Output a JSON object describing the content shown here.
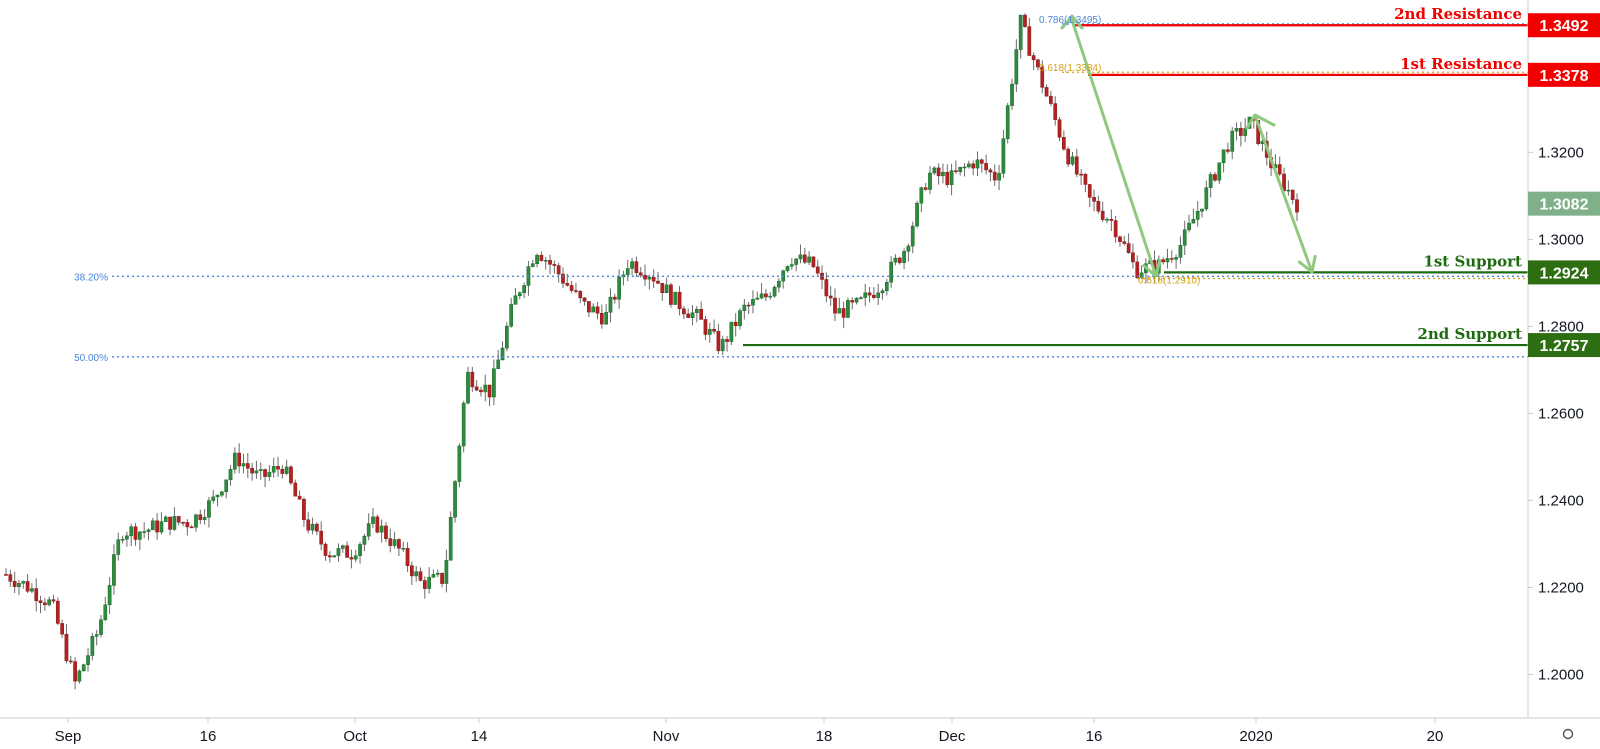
{
  "chart_data": {
    "type": "candlestick",
    "y_ticks": [
      "1.2000",
      "1.2200",
      "1.2400",
      "1.2600",
      "1.2800",
      "1.3000",
      "1.3200"
    ],
    "ylim": [
      1.19,
      1.355
    ],
    "x_ticks": [
      "Sep",
      "16",
      "Oct",
      "14",
      "Nov",
      "18",
      "Dec",
      "16",
      "2020",
      "20"
    ],
    "current_price": {
      "label": "1.3082",
      "value": 1.3082
    },
    "levels": [
      {
        "name": "2nd Resistance",
        "label": "1.3492",
        "value": 1.3492,
        "color": "#f20000"
      },
      {
        "name": "1st Resistance",
        "label": "1.3378",
        "value": 1.3378,
        "color": "#f20000"
      },
      {
        "name": "1st Support",
        "label": "1.2924",
        "value": 1.2924,
        "color": "#1e6b0f"
      },
      {
        "name": "2nd Support",
        "label": "1.2757",
        "value": 1.2757,
        "color": "#1e6b0f"
      }
    ],
    "fib_levels": [
      {
        "label": "38.20%",
        "value": 1.2915,
        "color": "#4a86d9"
      },
      {
        "label": "50.00%",
        "value": 1.273,
        "color": "#4a86d9"
      }
    ],
    "fib_small": [
      {
        "label": "0.786(1.3495)",
        "value": 1.3495,
        "color": "#4a86d9"
      },
      {
        "label": "0.618(1.3384)",
        "value": 1.3384,
        "color": "#d4a017"
      },
      {
        "label": "0.618(1.2910)",
        "value": 1.291,
        "color": "#d4a017"
      }
    ],
    "price_path": [
      [
        1.228,
        1.223
      ],
      [
        1.224,
        1.22
      ],
      [
        1.219,
        1.216
      ],
      [
        1.208,
        1.198
      ],
      [
        1.208,
        1.21
      ],
      [
        1.23,
        1.233
      ],
      [
        1.236,
        1.233
      ],
      [
        1.232,
        1.235
      ],
      [
        1.238,
        1.235
      ],
      [
        1.25,
        1.24
      ],
      [
        1.245,
        1.25
      ],
      [
        1.256,
        1.245
      ],
      [
        1.242,
        1.248
      ],
      [
        1.238,
        1.235
      ],
      [
        1.23,
        1.228
      ],
      [
        1.227,
        1.228
      ],
      [
        1.23,
        1.235
      ],
      [
        1.233,
        1.229
      ],
      [
        1.225,
        1.221
      ],
      [
        1.22,
        1.222
      ],
      [
        1.25,
        1.269
      ],
      [
        1.26,
        1.265
      ],
      [
        1.276,
        1.285
      ],
      [
        1.293,
        1.298
      ],
      [
        1.288,
        1.292
      ],
      [
        1.286,
        1.285
      ],
      [
        1.284,
        1.282
      ],
      [
        1.288,
        1.295
      ],
      [
        1.296,
        1.292
      ],
      [
        1.289,
        1.286
      ],
      [
        1.285,
        1.282
      ],
      [
        1.278,
        1.275
      ],
      [
        1.282,
        1.284
      ],
      [
        1.283,
        1.287
      ],
      [
        1.295,
        1.296
      ],
      [
        1.292,
        1.294
      ],
      [
        1.288,
        1.283
      ],
      [
        1.286,
        1.285
      ],
      [
        1.288,
        1.29
      ],
      [
        1.294,
        1.298
      ],
      [
        1.302,
        1.315
      ],
      [
        1.316,
        1.314
      ],
      [
        1.316,
        1.318
      ],
      [
        1.315,
        1.314
      ],
      [
        1.32,
        1.35
      ],
      [
        1.338,
        1.335
      ],
      [
        1.33,
        1.32
      ],
      [
        1.311,
        1.309
      ],
      [
        1.305,
        1.304
      ],
      [
        1.302,
        1.293
      ],
      [
        1.295,
        1.294
      ],
      [
        1.296,
        1.299
      ],
      [
        1.305,
        1.31
      ],
      [
        1.31,
        1.322
      ],
      [
        1.328,
        1.327
      ],
      [
        1.325,
        1.316
      ],
      [
        1.31,
        1.3082
      ]
    ]
  }
}
